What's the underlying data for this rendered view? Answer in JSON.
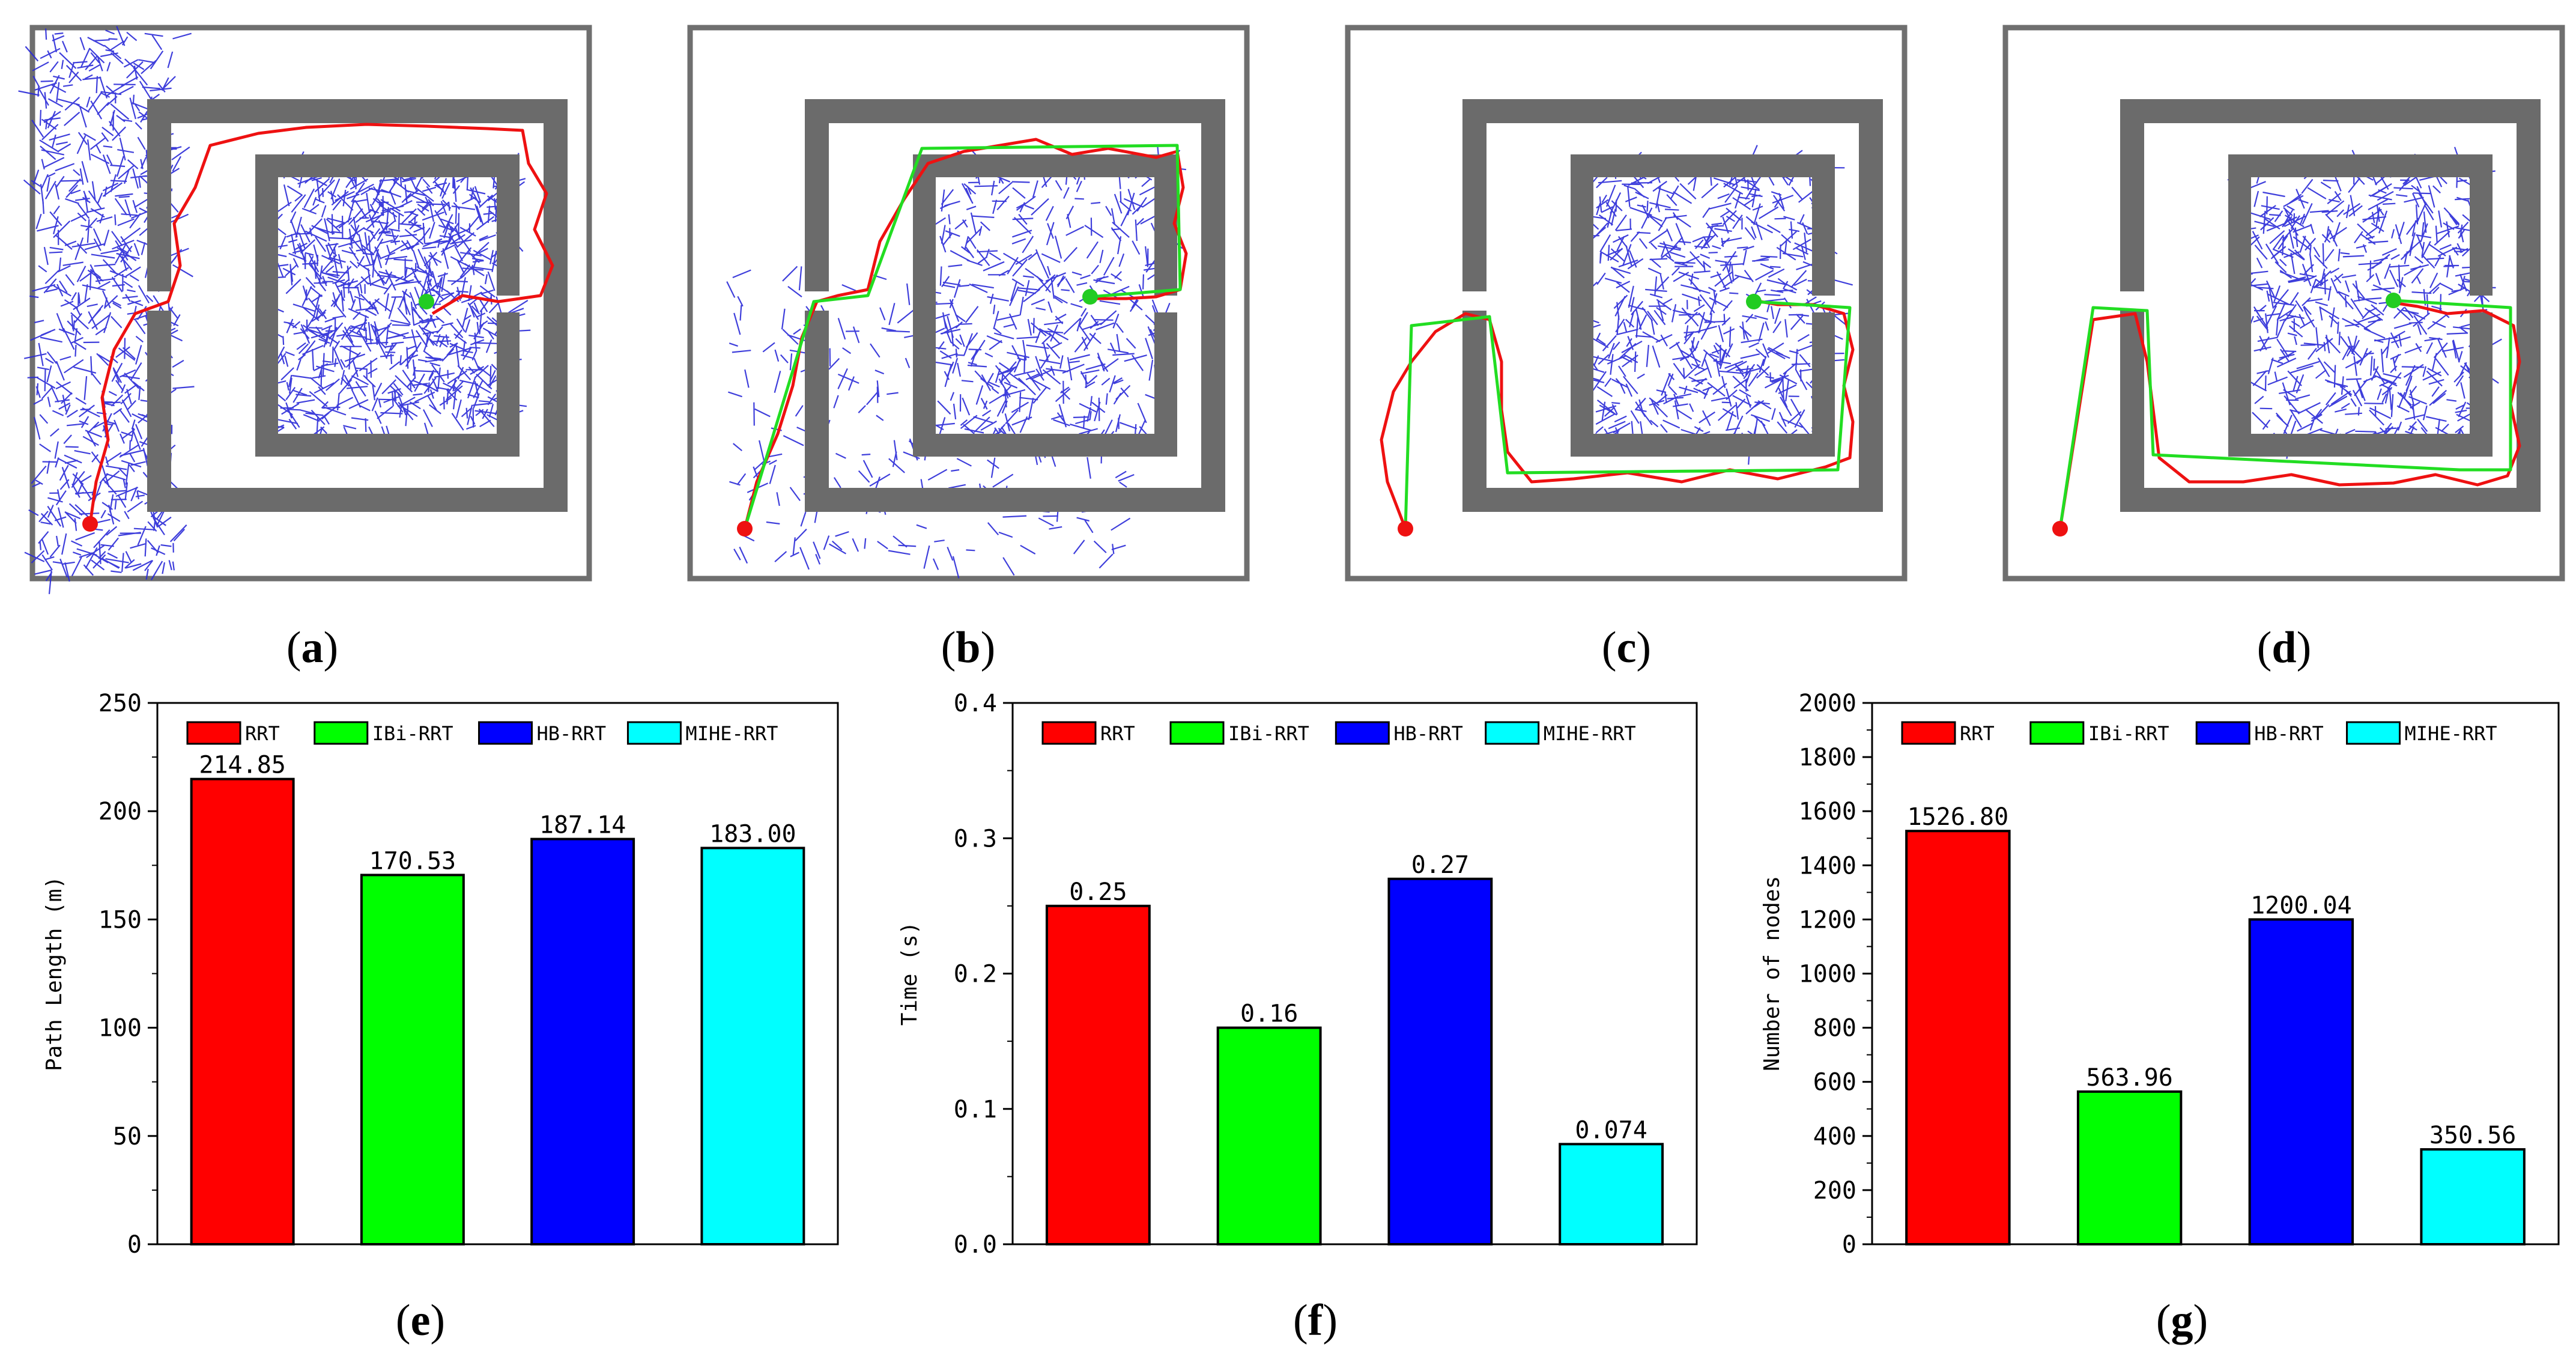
{
  "captions": {
    "a": "a",
    "b": "b",
    "c": "c",
    "d": "d",
    "e": "e",
    "f": "f",
    "g": "g"
  },
  "colors": {
    "wall": "#6b6b6b",
    "tree": "#2a2ad8",
    "path_red": "#ee1111",
    "path_green": "#22dd22",
    "start": "#ee1111",
    "goal": "#22cc22"
  },
  "panels": [
    {
      "id": "a",
      "tree_density": "high",
      "green_path": false
    },
    {
      "id": "b",
      "tree_density": "medium",
      "green_path": true
    },
    {
      "id": "c",
      "tree_density": "medium",
      "green_path": true
    },
    {
      "id": "d",
      "tree_density": "medium",
      "green_path": true
    }
  ],
  "chart_data": [
    {
      "type": "bar",
      "panel": "e",
      "categories": [
        "RRT",
        "IBi-RRT",
        "HB-RRT",
        "MIHE-RRT"
      ],
      "values": [
        214.85,
        170.53,
        187.14,
        183.0
      ],
      "value_labels": [
        "214.85",
        "170.53",
        "187.14",
        "183.00"
      ],
      "colors": [
        "#ff0000",
        "#00ff00",
        "#0000ff",
        "#00ffff"
      ],
      "ylabel": "Path Length (m)",
      "xlabel": "",
      "ylim": [
        0,
        250
      ],
      "yticks": [
        0,
        50,
        100,
        150,
        200,
        250
      ],
      "ytick_labels": [
        "0",
        "50",
        "100",
        "150",
        "200",
        "250"
      ],
      "legend": [
        "RRT",
        "IBi-RRT",
        "HB-RRT",
        "MIHE-RRT"
      ],
      "legend_position": "top"
    },
    {
      "type": "bar",
      "panel": "f",
      "categories": [
        "RRT",
        "IBi-RRT",
        "HB-RRT",
        "MIHE-RRT"
      ],
      "values": [
        0.25,
        0.16,
        0.27,
        0.074
      ],
      "value_labels": [
        "0.25",
        "0.16",
        "0.27",
        "0.074"
      ],
      "colors": [
        "#ff0000",
        "#00ff00",
        "#0000ff",
        "#00ffff"
      ],
      "ylabel": "Time (s)",
      "xlabel": "",
      "ylim": [
        0,
        0.4
      ],
      "yticks": [
        0,
        0.1,
        0.2,
        0.3,
        0.4
      ],
      "ytick_labels": [
        "0.0",
        "0.1",
        "0.2",
        "0.3",
        "0.4"
      ],
      "legend": [
        "RRT",
        "IBi-RRT",
        "HB-RRT",
        "MIHE-RRT"
      ],
      "legend_position": "top"
    },
    {
      "type": "bar",
      "panel": "g",
      "categories": [
        "RRT",
        "IBi-RRT",
        "HB-RRT",
        "MIHE-RRT"
      ],
      "values": [
        1526.8,
        563.96,
        1200.04,
        350.56
      ],
      "value_labels": [
        "1526.80",
        "563.96",
        "1200.04",
        "350.56"
      ],
      "colors": [
        "#ff0000",
        "#00ff00",
        "#0000ff",
        "#00ffff"
      ],
      "ylabel": "Number of nodes",
      "xlabel": "",
      "ylim": [
        0,
        2000
      ],
      "yticks": [
        0,
        200,
        400,
        600,
        800,
        1000,
        1200,
        1400,
        1600,
        1800,
        2000
      ],
      "ytick_labels": [
        "0",
        "200",
        "400",
        "600",
        "800",
        "1000",
        "1200",
        "1400",
        "1600",
        "1800",
        "2000"
      ],
      "legend": [
        "RRT",
        "IBi-RRT",
        "HB-RRT",
        "MIHE-RRT"
      ],
      "legend_position": "top"
    }
  ]
}
